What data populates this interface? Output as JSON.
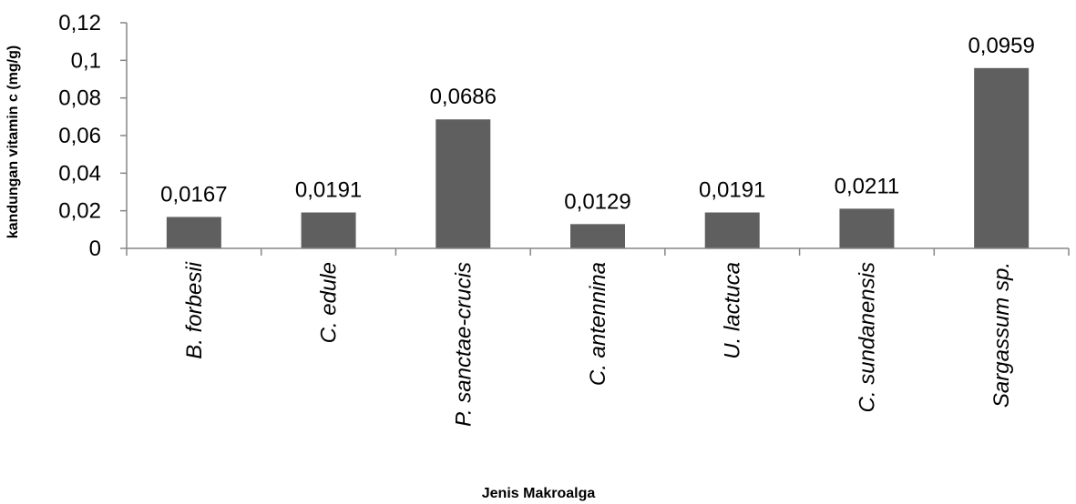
{
  "chart_data": {
    "type": "bar",
    "title": "",
    "xlabel": "Jenis Makroalga",
    "ylabel": "kandungan vitamin c (mg/g)",
    "categories": [
      "B. forbesii",
      "C. edule",
      "P. sanctae-crucis",
      "C. antennina",
      "U. lactuca",
      "C. sundanensis",
      "Sargassum sp."
    ],
    "values": [
      0.0167,
      0.0191,
      0.0686,
      0.0129,
      0.0191,
      0.0211,
      0.0959
    ],
    "data_labels": [
      "0,0167",
      "0,0191",
      "0,0686",
      "0,0129",
      "0,0191",
      "0,0211",
      "0,0959"
    ],
    "ylim": [
      0,
      0.12
    ],
    "yticks": [
      0,
      0.02,
      0.04,
      0.06,
      0.08,
      0.1,
      0.12
    ],
    "ytick_labels": [
      "0",
      "0,02",
      "0,04",
      "0,06",
      "0,08",
      "0,1",
      "0,12"
    ],
    "bar_color": "#5f5f5f",
    "grid": false,
    "legend": "none"
  }
}
